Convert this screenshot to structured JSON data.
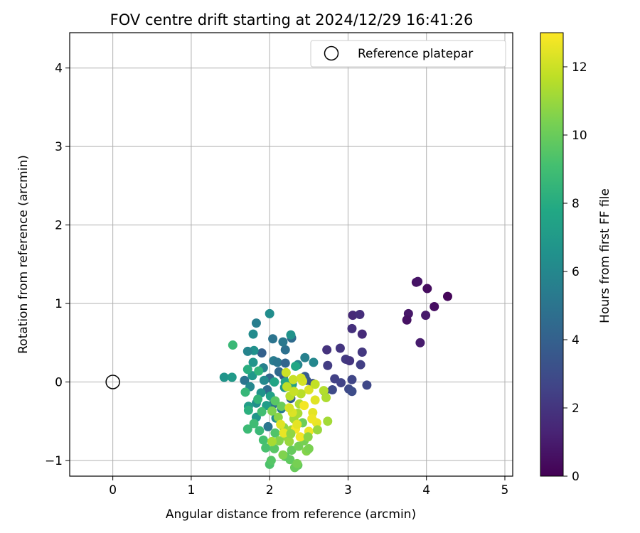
{
  "chart_data": {
    "type": "scatter",
    "title": "FOV centre drift starting at 2024/12/29 16:41:26",
    "xlabel": "Angular distance from reference (arcmin)",
    "ylabel": "Rotation from reference (arcmin)",
    "xlim": [
      -0.55,
      5.1
    ],
    "ylim": [
      -1.2,
      4.45
    ],
    "xticks": [
      0,
      1,
      2,
      3,
      4,
      5
    ],
    "yticks": [
      -1,
      0,
      1,
      2,
      3,
      4
    ],
    "grid": true,
    "legend": {
      "placement": "top-right",
      "entries": [
        "Reference platepar"
      ]
    },
    "reference_point": {
      "label": "Reference platepar",
      "x": 0,
      "y": 0,
      "marker": "open-circle"
    },
    "colorbar": {
      "label": "Hours from first FF file",
      "colormap": "viridis",
      "range": [
        0,
        13
      ],
      "ticks": [
        0,
        2,
        4,
        6,
        8,
        10,
        12
      ]
    },
    "series": [
      {
        "color_by": "hours",
        "points": [
          {
            "x": 4.27,
            "y": 1.09,
            "c": 0.2
          },
          {
            "x": 4.01,
            "y": 1.19,
            "c": 0.4
          },
          {
            "x": 3.87,
            "y": 1.27,
            "c": 0.6
          },
          {
            "x": 3.89,
            "y": 1.28,
            "c": 0.7
          },
          {
            "x": 4.1,
            "y": 0.96,
            "c": 0.5
          },
          {
            "x": 3.77,
            "y": 0.87,
            "c": 0.8
          },
          {
            "x": 3.99,
            "y": 0.85,
            "c": 0.9
          },
          {
            "x": 3.75,
            "y": 0.79,
            "c": 0.6
          },
          {
            "x": 3.92,
            "y": 0.5,
            "c": 1.0
          },
          {
            "x": 3.06,
            "y": 0.85,
            "c": 1.5
          },
          {
            "x": 3.15,
            "y": 0.86,
            "c": 1.7
          },
          {
            "x": 3.05,
            "y": 0.68,
            "c": 1.8
          },
          {
            "x": 3.18,
            "y": 0.61,
            "c": 1.6
          },
          {
            "x": 2.9,
            "y": 0.43,
            "c": 2.0
          },
          {
            "x": 2.73,
            "y": 0.41,
            "c": 1.9
          },
          {
            "x": 3.18,
            "y": 0.38,
            "c": 2.1
          },
          {
            "x": 2.97,
            "y": 0.29,
            "c": 2.2
          },
          {
            "x": 3.02,
            "y": 0.27,
            "c": 2.0
          },
          {
            "x": 2.74,
            "y": 0.21,
            "c": 2.3
          },
          {
            "x": 3.16,
            "y": 0.22,
            "c": 2.4
          },
          {
            "x": 2.83,
            "y": 0.04,
            "c": 2.5
          },
          {
            "x": 2.91,
            "y": -0.01,
            "c": 2.6
          },
          {
            "x": 3.05,
            "y": 0.03,
            "c": 2.7
          },
          {
            "x": 3.24,
            "y": -0.04,
            "c": 2.8
          },
          {
            "x": 3.01,
            "y": -0.09,
            "c": 2.9
          },
          {
            "x": 3.05,
            "y": -0.12,
            "c": 3.0
          },
          {
            "x": 2.8,
            "y": -0.1,
            "c": 2.9
          },
          {
            "x": 2.7,
            "y": -0.12,
            "c": 3.1
          },
          {
            "x": 2.55,
            "y": -0.02,
            "c": 3.2
          },
          {
            "x": 2.47,
            "y": 0.02,
            "c": 3.4
          },
          {
            "x": 2.18,
            "y": 0.08,
            "c": 3.6
          },
          {
            "x": 1.9,
            "y": 0.37,
            "c": 4.0
          },
          {
            "x": 2.28,
            "y": 0.56,
            "c": 4.5
          },
          {
            "x": 2.2,
            "y": 0.41,
            "c": 4.8
          },
          {
            "x": 2.04,
            "y": 0.55,
            "c": 5.0
          },
          {
            "x": 2.17,
            "y": 0.51,
            "c": 5.2
          },
          {
            "x": 1.83,
            "y": 0.75,
            "c": 5.5
          },
          {
            "x": 2.0,
            "y": 0.87,
            "c": 6.3
          },
          {
            "x": 2.27,
            "y": 0.6,
            "c": 6.6
          },
          {
            "x": 1.79,
            "y": 0.61,
            "c": 6.2
          },
          {
            "x": 1.8,
            "y": 0.4,
            "c": 6.5
          },
          {
            "x": 1.68,
            "y": 0.02,
            "c": 5.0
          },
          {
            "x": 1.79,
            "y": 0.25,
            "c": 6.7
          },
          {
            "x": 1.72,
            "y": 0.39,
            "c": 5.8
          },
          {
            "x": 2.05,
            "y": 0.27,
            "c": 5.4
          },
          {
            "x": 2.1,
            "y": 0.25,
            "c": 5.1
          },
          {
            "x": 2.2,
            "y": 0.24,
            "c": 4.2
          },
          {
            "x": 2.45,
            "y": 0.31,
            "c": 5.6
          },
          {
            "x": 2.56,
            "y": 0.25,
            "c": 6.0
          },
          {
            "x": 2.36,
            "y": 0.22,
            "c": 5.9
          },
          {
            "x": 2.45,
            "y": 0.07,
            "c": 3.8
          },
          {
            "x": 2.0,
            "y": 0.05,
            "c": 4.3
          },
          {
            "x": 1.97,
            "y": -0.1,
            "c": 4.6
          },
          {
            "x": 2.05,
            "y": -0.28,
            "c": 4.9
          },
          {
            "x": 2.15,
            "y": -0.34,
            "c": 5.3
          },
          {
            "x": 1.98,
            "y": -0.57,
            "c": 5.1
          },
          {
            "x": 2.27,
            "y": -0.21,
            "c": 3.9
          },
          {
            "x": 2.12,
            "y": 0.13,
            "c": 4.4
          },
          {
            "x": 1.92,
            "y": 0.18,
            "c": 5.7
          },
          {
            "x": 1.42,
            "y": 0.06,
            "c": 6.7
          },
          {
            "x": 1.52,
            "y": 0.06,
            "c": 7.0
          },
          {
            "x": 1.78,
            "y": 0.08,
            "c": 6.9
          },
          {
            "x": 1.93,
            "y": 0.02,
            "c": 6.1
          },
          {
            "x": 1.75,
            "y": -0.06,
            "c": 6.0
          },
          {
            "x": 1.83,
            "y": -0.27,
            "c": 6.4
          },
          {
            "x": 1.89,
            "y": -0.14,
            "c": 6.6
          },
          {
            "x": 1.83,
            "y": -0.45,
            "c": 6.8
          },
          {
            "x": 1.96,
            "y": -0.3,
            "c": 7.1
          },
          {
            "x": 2.08,
            "y": -0.46,
            "c": 6.3
          },
          {
            "x": 1.73,
            "y": -0.31,
            "c": 7.2
          },
          {
            "x": 2.19,
            "y": -0.07,
            "c": 6.8
          },
          {
            "x": 2.01,
            "y": -0.18,
            "c": 7.4
          },
          {
            "x": 2.2,
            "y": 0.0,
            "c": 7.5
          },
          {
            "x": 2.06,
            "y": 0.0,
            "c": 7.6
          },
          {
            "x": 2.29,
            "y": -0.03,
            "c": 7.3
          },
          {
            "x": 2.33,
            "y": 0.2,
            "c": 7.7
          },
          {
            "x": 1.53,
            "y": 0.47,
            "c": 8.7
          },
          {
            "x": 1.72,
            "y": 0.16,
            "c": 8.1
          },
          {
            "x": 1.86,
            "y": 0.14,
            "c": 8.4
          },
          {
            "x": 1.69,
            "y": -0.13,
            "c": 8.6
          },
          {
            "x": 1.73,
            "y": -0.36,
            "c": 8.2
          },
          {
            "x": 1.8,
            "y": -0.53,
            "c": 8.9
          },
          {
            "x": 1.72,
            "y": -0.6,
            "c": 8.8
          },
          {
            "x": 1.87,
            "y": -0.62,
            "c": 8.7
          },
          {
            "x": 1.85,
            "y": -0.22,
            "c": 8.5
          },
          {
            "x": 1.9,
            "y": -0.38,
            "c": 9.0
          },
          {
            "x": 1.92,
            "y": -0.74,
            "c": 9.1
          },
          {
            "x": 1.95,
            "y": -0.84,
            "c": 9.2
          },
          {
            "x": 2.0,
            "y": -1.05,
            "c": 9.3
          },
          {
            "x": 2.02,
            "y": -1.0,
            "c": 9.5
          },
          {
            "x": 2.07,
            "y": -0.65,
            "c": 9.4
          },
          {
            "x": 2.06,
            "y": -0.85,
            "c": 9.6
          },
          {
            "x": 2.2,
            "y": -0.95,
            "c": 9.7
          },
          {
            "x": 2.26,
            "y": -0.99,
            "c": 9.8
          },
          {
            "x": 2.28,
            "y": -0.87,
            "c": 9.9
          },
          {
            "x": 2.36,
            "y": -1.06,
            "c": 9.8
          },
          {
            "x": 2.32,
            "y": -1.09,
            "c": 10.0
          },
          {
            "x": 2.37,
            "y": -0.82,
            "c": 10.2
          },
          {
            "x": 2.44,
            "y": -0.75,
            "c": 10.3
          },
          {
            "x": 2.47,
            "y": -0.88,
            "c": 10.6
          },
          {
            "x": 2.5,
            "y": -0.85,
            "c": 10.4
          },
          {
            "x": 2.42,
            "y": -0.52,
            "c": 10.1
          },
          {
            "x": 2.15,
            "y": -0.31,
            "c": 10.0
          },
          {
            "x": 2.07,
            "y": -0.24,
            "c": 9.6
          },
          {
            "x": 2.03,
            "y": -0.37,
            "c": 10.5
          },
          {
            "x": 2.11,
            "y": -0.45,
            "c": 10.7
          },
          {
            "x": 2.18,
            "y": -0.58,
            "c": 10.8
          },
          {
            "x": 2.22,
            "y": -0.7,
            "c": 10.9
          },
          {
            "x": 2.25,
            "y": -0.76,
            "c": 11.0
          },
          {
            "x": 2.28,
            "y": -0.61,
            "c": 11.1
          },
          {
            "x": 2.31,
            "y": -0.47,
            "c": 11.2
          },
          {
            "x": 2.36,
            "y": -0.4,
            "c": 11.3
          },
          {
            "x": 2.38,
            "y": -0.28,
            "c": 11.4
          },
          {
            "x": 2.26,
            "y": -0.18,
            "c": 11.6
          },
          {
            "x": 2.22,
            "y": -0.06,
            "c": 11.7
          },
          {
            "x": 2.3,
            "y": 0.03,
            "c": 11.9
          },
          {
            "x": 2.21,
            "y": 0.12,
            "c": 12.0
          },
          {
            "x": 2.42,
            "y": 0.01,
            "c": 12.2
          },
          {
            "x": 2.5,
            "y": -0.1,
            "c": 12.3
          },
          {
            "x": 2.58,
            "y": -0.23,
            "c": 12.4
          },
          {
            "x": 2.55,
            "y": -0.39,
            "c": 12.5
          },
          {
            "x": 2.6,
            "y": -0.52,
            "c": 12.6
          },
          {
            "x": 2.5,
            "y": -0.63,
            "c": 12.7
          },
          {
            "x": 2.39,
            "y": -0.7,
            "c": 12.8
          },
          {
            "x": 2.18,
            "y": -0.65,
            "c": 12.6
          },
          {
            "x": 2.14,
            "y": -0.54,
            "c": 12.4
          },
          {
            "x": 2.29,
            "y": -0.39,
            "c": 12.3
          },
          {
            "x": 2.33,
            "y": -0.6,
            "c": 12.9
          },
          {
            "x": 2.44,
            "y": -0.3,
            "c": 12.8
          },
          {
            "x": 2.54,
            "y": -0.47,
            "c": 12.7
          },
          {
            "x": 2.69,
            "y": -0.11,
            "c": 11.5
          },
          {
            "x": 2.72,
            "y": -0.2,
            "c": 11.4
          },
          {
            "x": 2.74,
            "y": -0.5,
            "c": 11.2
          },
          {
            "x": 2.61,
            "y": -0.61,
            "c": 11.0
          },
          {
            "x": 2.58,
            "y": -0.03,
            "c": 11.8
          },
          {
            "x": 2.27,
            "y": -0.66,
            "c": 10.8
          },
          {
            "x": 2.12,
            "y": -0.75,
            "c": 10.6
          },
          {
            "x": 2.03,
            "y": -0.76,
            "c": 11.3
          },
          {
            "x": 2.17,
            "y": -0.93,
            "c": 10.5
          },
          {
            "x": 2.35,
            "y": -1.04,
            "c": 10.3
          },
          {
            "x": 2.49,
            "y": -0.7,
            "c": 10.7
          },
          {
            "x": 2.4,
            "y": -0.15,
            "c": 11.6
          },
          {
            "x": 2.31,
            "y": -0.12,
            "c": 11.9
          },
          {
            "x": 2.4,
            "y": 0.05,
            "c": 12.1
          },
          {
            "x": 2.25,
            "y": -0.33,
            "c": 12.2
          },
          {
            "x": 2.35,
            "y": -0.54,
            "c": 12.5
          }
        ]
      }
    ]
  }
}
